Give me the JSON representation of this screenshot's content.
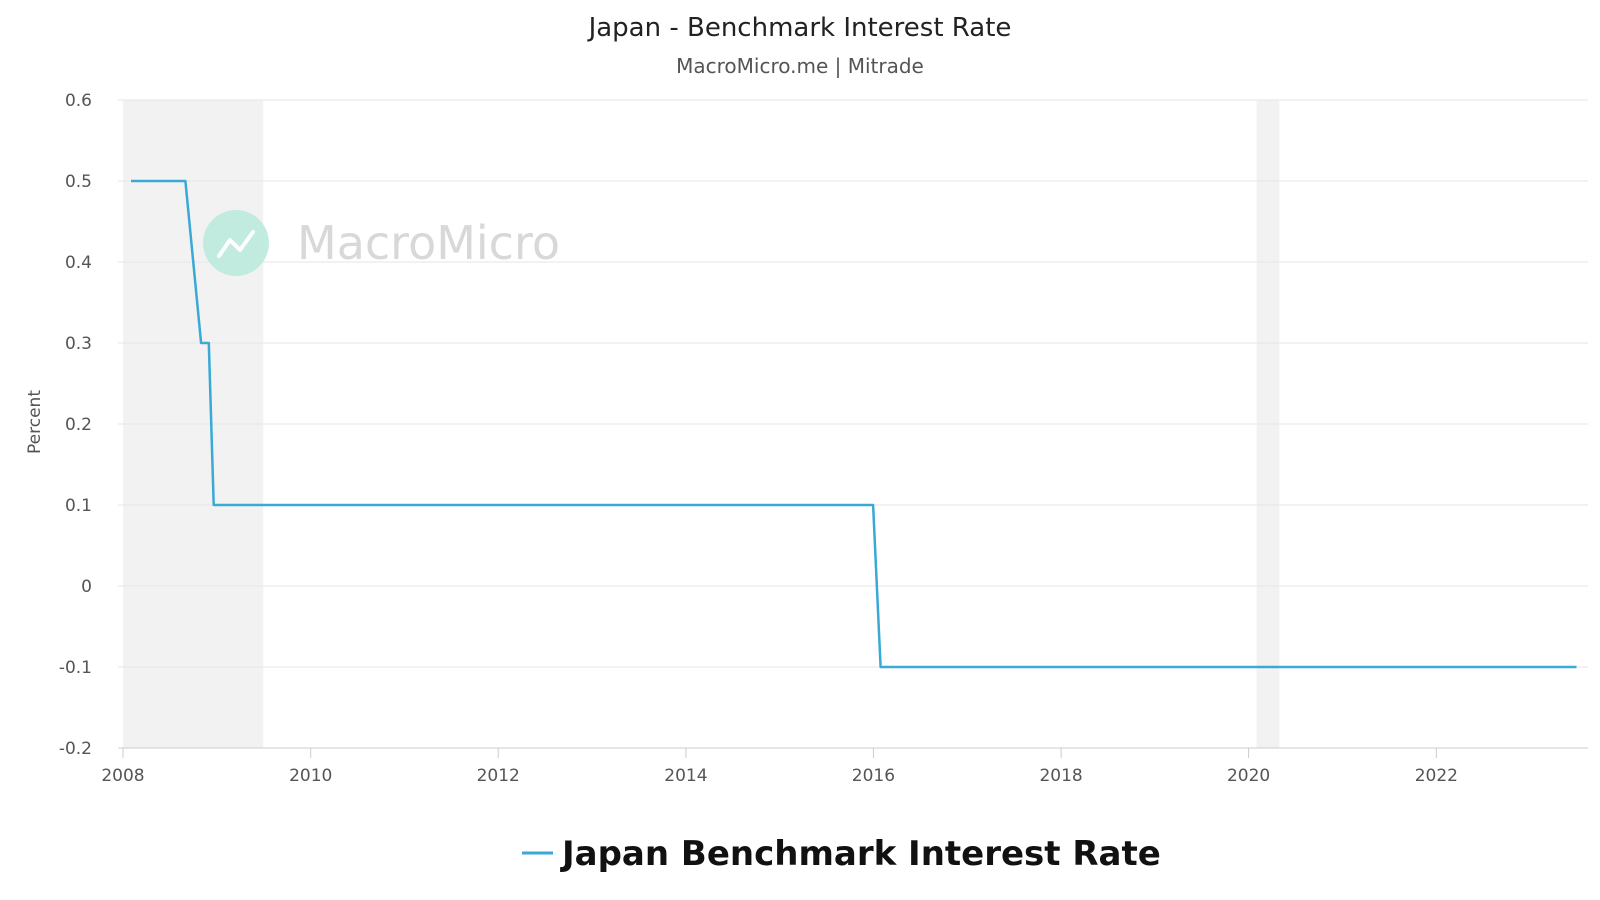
{
  "chart_data": {
    "type": "line",
    "title": "Japan - Benchmark Interest Rate",
    "subtitle": "MacroMicro.me | Mitrade",
    "watermark": "MacroMicro",
    "ylabel": "Percent",
    "xlabel": "",
    "ylim": [
      -0.2,
      0.6
    ],
    "yticks": [
      "0.6",
      "0.5",
      "0.4",
      "0.3",
      "0.2",
      "0.1",
      "0",
      "-0.1",
      "-0.2"
    ],
    "xlim": [
      "2008-01-01",
      "2023-12-31"
    ],
    "xticks": [
      "2008",
      "2010",
      "2012",
      "2014",
      "2016",
      "2018",
      "2020",
      "2022"
    ],
    "grid": true,
    "legend_position": "bottom-center",
    "shaded_periods": [
      {
        "start": "2008-01-01",
        "end": "2009-06-30"
      },
      {
        "start": "2020-02-01",
        "end": "2020-04-30"
      }
    ],
    "series": [
      {
        "name": "Japan Benchmark Interest Rate",
        "color": "#3aa9d6",
        "points": [
          {
            "x": "2008-02-01",
            "y": 0.5
          },
          {
            "x": "2008-08-31",
            "y": 0.5
          },
          {
            "x": "2008-10-31",
            "y": 0.3
          },
          {
            "x": "2008-11-30",
            "y": 0.3
          },
          {
            "x": "2008-12-19",
            "y": 0.1
          },
          {
            "x": "2015-12-31",
            "y": 0.1
          },
          {
            "x": "2016-01-29",
            "y": -0.1
          },
          {
            "x": "2023-07-01",
            "y": -0.1
          }
        ]
      }
    ]
  }
}
